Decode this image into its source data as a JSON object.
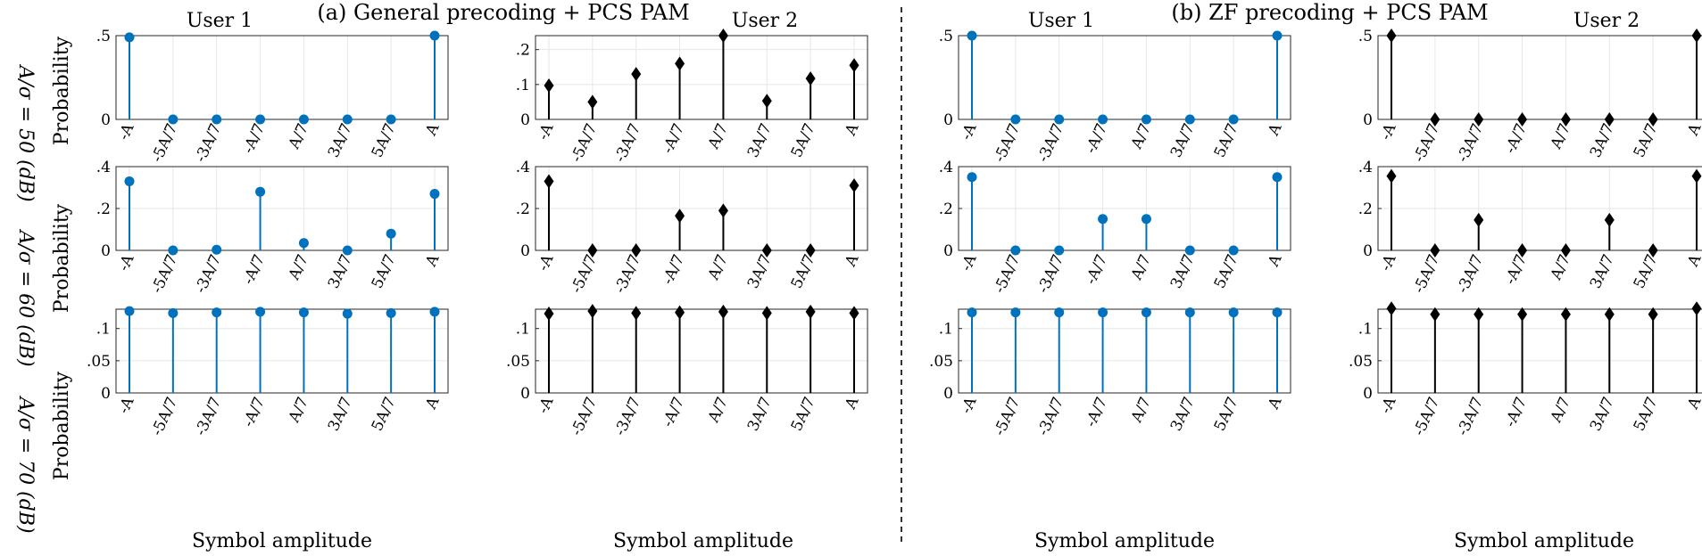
{
  "figure": {
    "titles": [
      "(a) General precoding + PCS PAM",
      "(b) ZF precoding + PCS PAM"
    ],
    "column_titles": [
      "User 1",
      "User 2",
      "User 1",
      "User 2"
    ],
    "row_labels": [
      "A/σ = 50 (dB)",
      "A/σ = 60 (dB)",
      "A/σ = 70 (dB)"
    ],
    "ylabel": "Probability",
    "xlabel": "Symbol amplitude"
  },
  "colors": {
    "blue": "#0072bd",
    "black": "#000000",
    "grid": "#e6e6e6",
    "axes": "#262626"
  },
  "chart_data": [
    {
      "type": "stem",
      "panel": "a",
      "row": 1,
      "user": "User 1",
      "marker": "circle",
      "color": "blue",
      "categories": [
        "-A",
        "-5A/7",
        "-3A/7",
        "-A/7",
        "A/7",
        "3A/7",
        "5A/7",
        "A"
      ],
      "values": [
        0.49,
        0,
        0,
        0,
        0,
        0,
        0,
        0.5
      ],
      "ylim": [
        0,
        0.5
      ],
      "yticks": [
        0,
        0.5
      ],
      "xlabel": "",
      "ylabel": "Probability"
    },
    {
      "type": "stem",
      "panel": "a",
      "row": 1,
      "user": "User 2",
      "marker": "diamond",
      "color": "black",
      "categories": [
        "-A",
        "-5A/7",
        "-3A/7",
        "-A/7",
        "A/7",
        "3A/7",
        "5A/7",
        "A"
      ],
      "values": [
        0.097,
        0.05,
        0.13,
        0.16,
        0.24,
        0.053,
        0.117,
        0.155
      ],
      "ylim": [
        0,
        0.24
      ],
      "yticks": [
        0,
        0.1,
        0.2
      ],
      "xlabel": "",
      "ylabel": ""
    },
    {
      "type": "stem",
      "panel": "b",
      "row": 1,
      "user": "User 1",
      "marker": "circle",
      "color": "blue",
      "categories": [
        "-A",
        "-5A/7",
        "-3A/7",
        "-A/7",
        "A/7",
        "3A/7",
        "5A/7",
        "A"
      ],
      "values": [
        0.5,
        0,
        0,
        0,
        0,
        0,
        0,
        0.5
      ],
      "ylim": [
        0,
        0.5
      ],
      "yticks": [
        0,
        0.5
      ],
      "xlabel": "",
      "ylabel": ""
    },
    {
      "type": "stem",
      "panel": "b",
      "row": 1,
      "user": "User 2",
      "marker": "diamond",
      "color": "black",
      "categories": [
        "-A",
        "-5A/7",
        "-3A/7",
        "-A/7",
        "A/7",
        "3A/7",
        "5A/7",
        "A"
      ],
      "values": [
        0.5,
        0,
        0,
        0,
        0,
        0,
        0,
        0.5
      ],
      "ylim": [
        0,
        0.5
      ],
      "yticks": [
        0,
        0.5
      ],
      "xlabel": "",
      "ylabel": ""
    },
    {
      "type": "stem",
      "panel": "a",
      "row": 2,
      "user": "User 1",
      "marker": "circle",
      "color": "blue",
      "categories": [
        "-A",
        "-5A/7",
        "-3A/7",
        "-A/7",
        "A/7",
        "3A/7",
        "5A/7",
        "A"
      ],
      "values": [
        0.33,
        0.0,
        0.003,
        0.28,
        0.035,
        0.0,
        0.08,
        0.27
      ],
      "ylim": [
        0,
        0.4
      ],
      "yticks": [
        0,
        0.2,
        0.4
      ],
      "xlabel": "",
      "ylabel": "Probability"
    },
    {
      "type": "stem",
      "panel": "a",
      "row": 2,
      "user": "User 2",
      "marker": "diamond",
      "color": "black",
      "categories": [
        "-A",
        "-5A/7",
        "-3A/7",
        "-A/7",
        "A/7",
        "3A/7",
        "5A/7",
        "A"
      ],
      "values": [
        0.33,
        0,
        0,
        0.165,
        0.19,
        0,
        0,
        0.31
      ],
      "ylim": [
        0,
        0.4
      ],
      "yticks": [
        0,
        0.2,
        0.4
      ],
      "xlabel": "",
      "ylabel": ""
    },
    {
      "type": "stem",
      "panel": "b",
      "row": 2,
      "user": "User 1",
      "marker": "circle",
      "color": "blue",
      "categories": [
        "-A",
        "-5A/7",
        "-3A/7",
        "-A/7",
        "A/7",
        "3A/7",
        "5A/7",
        "A"
      ],
      "values": [
        0.35,
        0,
        0,
        0.15,
        0.15,
        0,
        0,
        0.35
      ],
      "ylim": [
        0,
        0.4
      ],
      "yticks": [
        0,
        0.2,
        0.4
      ],
      "xlabel": "",
      "ylabel": ""
    },
    {
      "type": "stem",
      "panel": "b",
      "row": 2,
      "user": "User 2",
      "marker": "diamond",
      "color": "black",
      "categories": [
        "-A",
        "-5A/7",
        "-3A/7",
        "-A/7",
        "A/7",
        "3A/7",
        "5A/7",
        "A"
      ],
      "values": [
        0.355,
        0,
        0.145,
        0,
        0,
        0.145,
        0,
        0.355
      ],
      "ylim": [
        0,
        0.4
      ],
      "yticks": [
        0,
        0.2,
        0.4
      ],
      "xlabel": "",
      "ylabel": ""
    },
    {
      "type": "stem",
      "panel": "a",
      "row": 3,
      "user": "User 1",
      "marker": "circle",
      "color": "blue",
      "categories": [
        "-A",
        "-5A/7",
        "-3A/7",
        "-A/7",
        "A/7",
        "3A/7",
        "5A/7",
        "A"
      ],
      "values": [
        0.127,
        0.124,
        0.125,
        0.126,
        0.125,
        0.123,
        0.124,
        0.126
      ],
      "ylim": [
        0,
        0.13
      ],
      "yticks": [
        0,
        0.05,
        0.1
      ],
      "xlabel": "Symbol amplitude",
      "ylabel": "Probability"
    },
    {
      "type": "stem",
      "panel": "a",
      "row": 3,
      "user": "User 2",
      "marker": "diamond",
      "color": "black",
      "categories": [
        "-A",
        "-5A/7",
        "-3A/7",
        "-A/7",
        "A/7",
        "3A/7",
        "5A/7",
        "A"
      ],
      "values": [
        0.123,
        0.127,
        0.124,
        0.125,
        0.126,
        0.124,
        0.126,
        0.124
      ],
      "ylim": [
        0,
        0.13
      ],
      "yticks": [
        0,
        0.05,
        0.1
      ],
      "xlabel": "Symbol amplitude",
      "ylabel": ""
    },
    {
      "type": "stem",
      "panel": "b",
      "row": 3,
      "user": "User 1",
      "marker": "circle",
      "color": "blue",
      "categories": [
        "-A",
        "-5A/7",
        "-3A/7",
        "-A/7",
        "A/7",
        "3A/7",
        "5A/7",
        "A"
      ],
      "values": [
        0.125,
        0.125,
        0.125,
        0.125,
        0.125,
        0.125,
        0.125,
        0.125
      ],
      "ylim": [
        0,
        0.13
      ],
      "yticks": [
        0,
        0.05,
        0.1
      ],
      "xlabel": "Symbol amplitude",
      "ylabel": ""
    },
    {
      "type": "stem",
      "panel": "b",
      "row": 3,
      "user": "User 2",
      "marker": "diamond",
      "color": "black",
      "categories": [
        "-A",
        "-5A/7",
        "-3A/7",
        "-A/7",
        "A/7",
        "3A/7",
        "5A/7",
        "A"
      ],
      "values": [
        0.131,
        0.122,
        0.122,
        0.122,
        0.122,
        0.122,
        0.122,
        0.131
      ],
      "ylim": [
        0,
        0.13
      ],
      "yticks": [
        0,
        0.05,
        0.1
      ],
      "xlabel": "Symbol amplitude",
      "ylabel": ""
    }
  ]
}
